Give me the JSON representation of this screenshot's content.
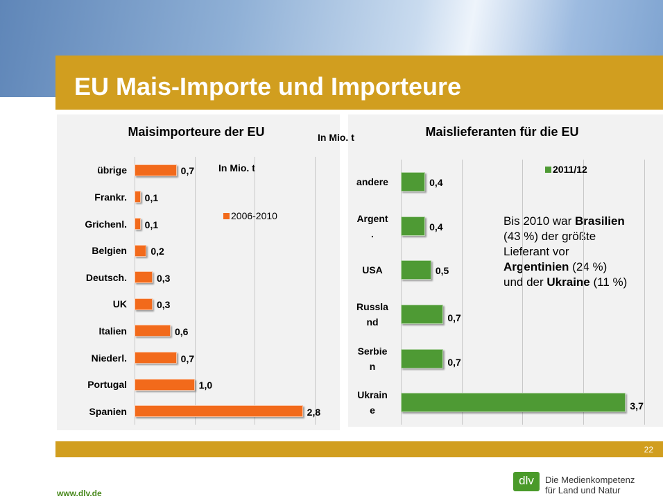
{
  "slide": {
    "title": "EU Mais-Importe und Importeure",
    "page": "22",
    "url": "www.dlv.de",
    "logo": "dlv",
    "claim": "Die Medienkompetenz\nfür Land und Natur",
    "text": [
      {
        "text": "Bis 2010 war ",
        "bold": false
      },
      {
        "text": "Brasilien",
        "bold": true
      },
      {
        "text": " (43 %) der größte Lieferant vor ",
        "bold": false
      },
      {
        "text": "Argentinien",
        "bold": true
      },
      {
        "text": " (24 %)  und der ",
        "bold": false
      },
      {
        "text": "Ukraine",
        "bold": true
      },
      {
        "text": " (11 %)",
        "bold": false
      }
    ]
  },
  "chart_data": [
    {
      "type": "hbar",
      "title": "Maisimporteure der EU",
      "annotation": "In Mio. t",
      "categories": [
        "übrige",
        "Frankr.",
        "Grichenl.",
        "Belgien",
        "Deutsch.",
        "UK",
        "Italien",
        "Niederl.",
        "Portugal",
        "Spanien"
      ],
      "series": [
        {
          "name": "2006-2010",
          "color": "#f26a1b",
          "values": [
            0.7,
            0.1,
            0.1,
            0.2,
            0.3,
            0.3,
            0.6,
            0.7,
            1.0,
            2.8
          ],
          "value_labels": [
            "0,7",
            "0,1",
            "0,1",
            "0,2",
            "0,3",
            "0,3",
            "0,6",
            "0,7",
            "1,0",
            "2,8"
          ]
        }
      ],
      "xlim": [
        0,
        3.3
      ],
      "xticks": [
        0,
        1,
        2,
        3
      ],
      "grid": true
    },
    {
      "type": "hbar",
      "title": "Maislieferanten für die EU",
      "annotation": "In Mio. t",
      "categories": [
        "andere",
        "Argent\n.",
        "USA",
        "Russla\nnd",
        "Serbie\nn",
        "Ukrain\ne"
      ],
      "series": [
        {
          "name": "2011/12",
          "color": "#4e9a34",
          "values": [
            0.4,
            0.4,
            0.5,
            0.7,
            0.7,
            3.7
          ],
          "value_labels": [
            "0,4",
            "0,4",
            "0,5",
            "0,7",
            "0,7",
            "3,7"
          ]
        }
      ],
      "xlim": [
        0,
        4.3
      ],
      "xticks": [
        0,
        1,
        2,
        3,
        4
      ],
      "grid": true
    }
  ]
}
